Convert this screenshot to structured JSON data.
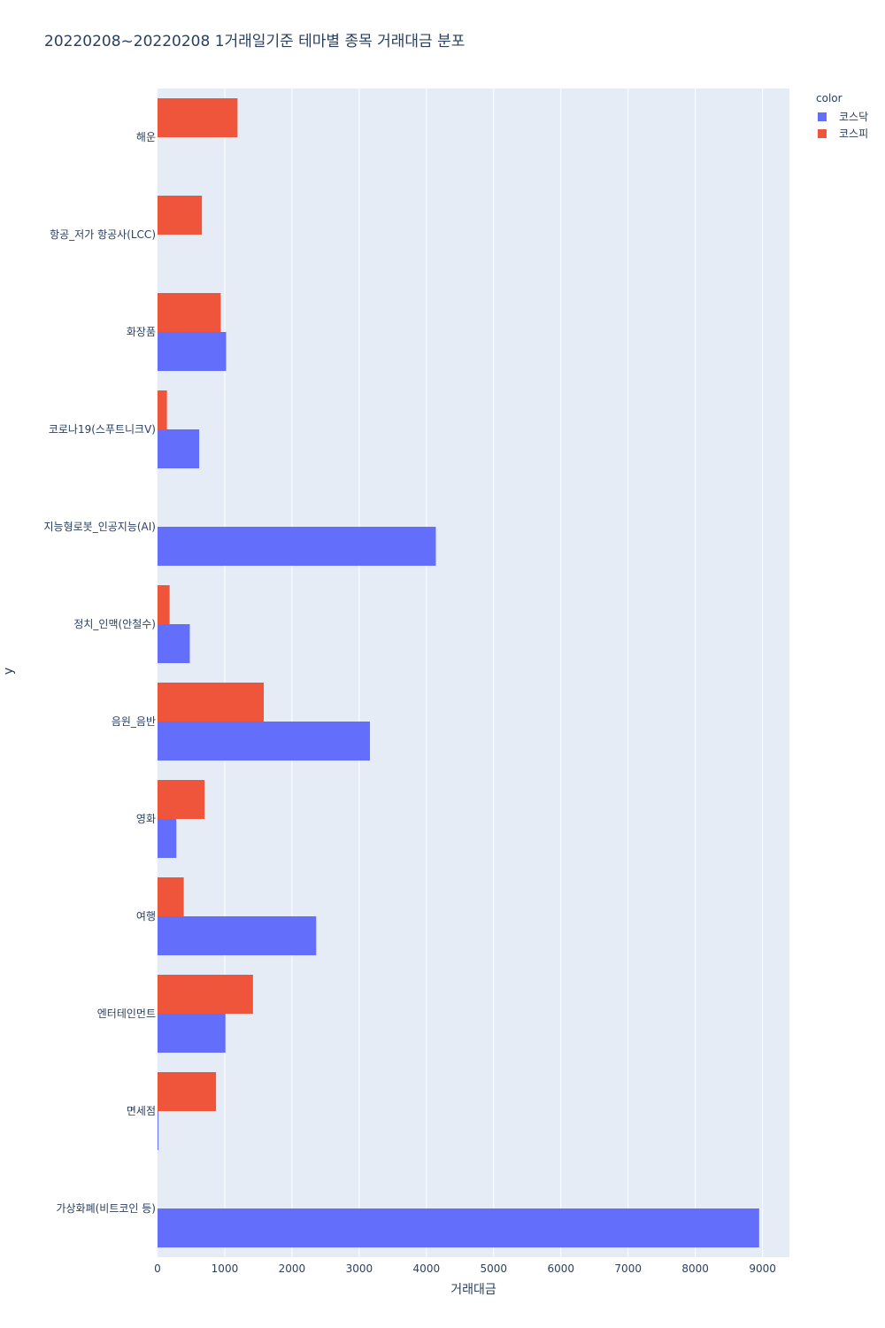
{
  "colors": {
    "kosdaq": "#636efa",
    "kospi": "#ef553b",
    "plot_bg": "#e5ecf6",
    "grid": "#ffffff",
    "text": "#2a3f5f"
  },
  "chart_data": {
    "type": "bar",
    "orientation": "horizontal",
    "title": "20220208~20220208 1거래일기준 테마별 종목 거래대금 분포",
    "xlabel": "거래대금",
    "ylabel": "y",
    "xlim": [
      0,
      9400
    ],
    "xticks": [
      "0",
      "1000",
      "2000",
      "3000",
      "4000",
      "5000",
      "6000",
      "7000",
      "8000",
      "9000"
    ],
    "xtick_values": [
      0,
      1000,
      2000,
      3000,
      4000,
      5000,
      6000,
      7000,
      8000,
      9000
    ],
    "categories": [
      "해운",
      "항공_저가 항공사(LCC)",
      "화장품",
      "코로나19(스푸트니크V)",
      "지능형로봇_인공지능(AI)",
      "정치_인맥(안철수)",
      "음원_음반",
      "영화",
      "여행",
      "엔터테인먼트",
      "면세점",
      "가상화폐(비트코인 등)"
    ],
    "legend_title": "color",
    "legend_position": "top-right",
    "series": [
      {
        "name": "코스닥",
        "color_key": "kosdaq",
        "values": [
          0,
          0,
          1020,
          620,
          4140,
          480,
          3160,
          280,
          2360,
          1010,
          10,
          8950
        ]
      },
      {
        "name": "코스피",
        "color_key": "kospi",
        "values": [
          1190,
          660,
          940,
          140,
          0,
          180,
          1580,
          700,
          390,
          1420,
          870,
          0
        ]
      }
    ]
  }
}
